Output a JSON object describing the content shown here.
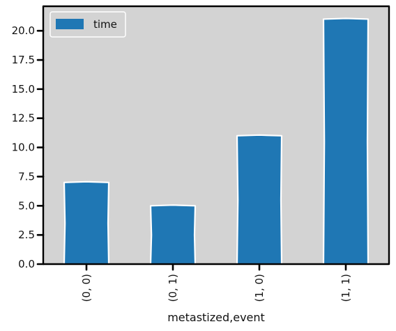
{
  "chart_data": {
    "type": "bar",
    "categories": [
      "(0, 0)",
      "(0, 1)",
      "(1, 0)",
      "(1, 1)"
    ],
    "series": [
      {
        "name": "time",
        "values": [
          7.0,
          5.0,
          11.0,
          21.0
        ],
        "color": "#1f77b4"
      }
    ],
    "title": "",
    "xlabel": "metastized,event",
    "ylabel": "",
    "ylim": [
      0,
      22.1
    ],
    "yticks": [
      0.0,
      2.5,
      5.0,
      7.5,
      10.0,
      12.5,
      15.0,
      17.5,
      20.0
    ],
    "ytick_labels": [
      "0.0",
      "2.5",
      "5.0",
      "7.5",
      "10.0",
      "12.5",
      "15.0",
      "17.5",
      "20.0"
    ],
    "grid": false,
    "legend": {
      "placement": "top-left",
      "entries": [
        "time"
      ]
    },
    "style": "xkcd",
    "background_color": "#d3d3d3",
    "bar_edge_color": "#ffffff",
    "xtick_rotation": "vertical"
  }
}
